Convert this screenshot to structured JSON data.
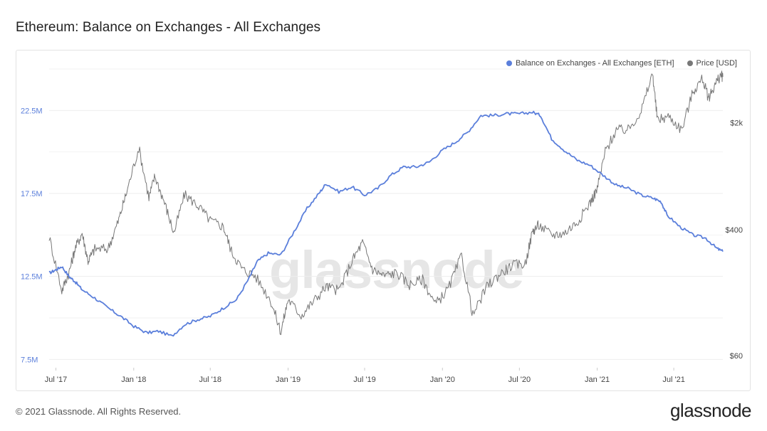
{
  "title": "Ethereum: Balance on Exchanges - All Exchanges",
  "watermark": "glassnode",
  "footer": {
    "copyright": "© 2021 Glassnode. All Rights Reserved.",
    "logo": "glassnode"
  },
  "legend": [
    {
      "label": "Balance on Exchanges - All Exchanges [ETH]",
      "color": "#5b7fdb"
    },
    {
      "label": "Price [USD]",
      "color": "#777777"
    }
  ],
  "chart_data": {
    "type": "line",
    "title": "Ethereum: Balance on Exchanges - All Exchanges",
    "x_ticks": [
      "Jul '17",
      "Jan '18",
      "Jul '18",
      "Jan '19",
      "Jul '19",
      "Jan '20",
      "Jul '20",
      "Jan '21",
      "Jul '21"
    ],
    "x_range": [
      "2017-06-15",
      "2021-10-25"
    ],
    "y_left": {
      "ticks": [
        "7.5M",
        "12.5M",
        "17.5M",
        "22.5M"
      ],
      "tick_values": [
        7.5,
        12.5,
        17.5,
        22.5
      ],
      "range": [
        7.0,
        25.0
      ],
      "unit": "M ETH",
      "color": "#5b7fdb"
    },
    "y_right": {
      "ticks": [
        "$60",
        "$400",
        "$2k"
      ],
      "tick_values": [
        60,
        400,
        2000
      ],
      "scale": "log",
      "range": [
        50,
        4500
      ],
      "color": "#444444"
    },
    "grid": true,
    "legend_position": "top-right",
    "series": [
      {
        "name": "Balance on Exchanges - All Exchanges [ETH]",
        "axis": "left",
        "color": "#5b7fdb",
        "points": [
          [
            "2017-06-15",
            12.7
          ],
          [
            "2017-07-01",
            12.9
          ],
          [
            "2017-07-15",
            13.1
          ],
          [
            "2017-08-01",
            12.5
          ],
          [
            "2017-08-15",
            12.2
          ],
          [
            "2017-09-01",
            11.7
          ],
          [
            "2017-10-01",
            11.2
          ],
          [
            "2017-11-01",
            10.6
          ],
          [
            "2017-12-01",
            10.1
          ],
          [
            "2018-01-01",
            9.5
          ],
          [
            "2018-02-01",
            9.1
          ],
          [
            "2018-03-01",
            9.2
          ],
          [
            "2018-04-01",
            8.9
          ],
          [
            "2018-05-01",
            9.6
          ],
          [
            "2018-06-01",
            9.9
          ],
          [
            "2018-07-01",
            10.1
          ],
          [
            "2018-08-01",
            10.6
          ],
          [
            "2018-09-01",
            11.1
          ],
          [
            "2018-10-01",
            12.4
          ],
          [
            "2018-10-20",
            13.4
          ],
          [
            "2018-11-15",
            13.9
          ],
          [
            "2018-12-15",
            13.8
          ],
          [
            "2019-01-15",
            15.2
          ],
          [
            "2019-02-15",
            16.6
          ],
          [
            "2019-03-15",
            17.5
          ],
          [
            "2019-04-01",
            18.1
          ],
          [
            "2019-05-01",
            17.6
          ],
          [
            "2019-06-01",
            17.9
          ],
          [
            "2019-07-01",
            17.4
          ],
          [
            "2019-08-01",
            17.8
          ],
          [
            "2019-09-01",
            18.6
          ],
          [
            "2019-10-01",
            19.1
          ],
          [
            "2019-11-01",
            19.1
          ],
          [
            "2019-12-01",
            19.4
          ],
          [
            "2020-01-01",
            20.1
          ],
          [
            "2020-02-01",
            20.6
          ],
          [
            "2020-03-01",
            21.2
          ],
          [
            "2020-04-01",
            22.2
          ],
          [
            "2020-05-01",
            22.2
          ],
          [
            "2020-06-01",
            22.3
          ],
          [
            "2020-07-01",
            22.3
          ],
          [
            "2020-08-01",
            22.4
          ],
          [
            "2020-08-20",
            22.2
          ],
          [
            "2020-09-15",
            20.8
          ],
          [
            "2020-10-15",
            20.1
          ],
          [
            "2020-11-15",
            19.5
          ],
          [
            "2020-12-15",
            19.2
          ],
          [
            "2021-01-15",
            18.6
          ],
          [
            "2021-02-15",
            18.0
          ],
          [
            "2021-03-15",
            17.8
          ],
          [
            "2021-04-15",
            17.4
          ],
          [
            "2021-05-15",
            17.2
          ],
          [
            "2021-06-01",
            17.0
          ],
          [
            "2021-06-15",
            16.2
          ],
          [
            "2021-07-15",
            15.5
          ],
          [
            "2021-08-15",
            15.0
          ],
          [
            "2021-09-15",
            14.8
          ],
          [
            "2021-10-10",
            14.2
          ],
          [
            "2021-10-25",
            14.0
          ]
        ]
      },
      {
        "name": "Price [USD]",
        "axis": "right",
        "color": "#777777",
        "points": [
          [
            "2017-06-15",
            360
          ],
          [
            "2017-07-15",
            160
          ],
          [
            "2017-08-01",
            210
          ],
          [
            "2017-08-15",
            300
          ],
          [
            "2017-09-01",
            380
          ],
          [
            "2017-09-15",
            250
          ],
          [
            "2017-10-01",
            300
          ],
          [
            "2017-11-01",
            300
          ],
          [
            "2017-11-25",
            450
          ],
          [
            "2017-12-15",
            700
          ],
          [
            "2018-01-13",
            1380
          ],
          [
            "2018-02-06",
            650
          ],
          [
            "2018-02-20",
            900
          ],
          [
            "2018-03-15",
            600
          ],
          [
            "2018-04-06",
            380
          ],
          [
            "2018-05-01",
            680
          ],
          [
            "2018-06-01",
            580
          ],
          [
            "2018-07-01",
            460
          ],
          [
            "2018-08-01",
            420
          ],
          [
            "2018-08-20",
            290
          ],
          [
            "2018-09-15",
            220
          ],
          [
            "2018-10-15",
            200
          ],
          [
            "2018-11-20",
            140
          ],
          [
            "2018-12-15",
            86
          ],
          [
            "2019-01-01",
            140
          ],
          [
            "2019-02-01",
            110
          ],
          [
            "2019-03-01",
            135
          ],
          [
            "2019-04-01",
            170
          ],
          [
            "2019-05-01",
            160
          ],
          [
            "2019-06-01",
            250
          ],
          [
            "2019-06-26",
            330
          ],
          [
            "2019-07-20",
            220
          ],
          [
            "2019-08-15",
            200
          ],
          [
            "2019-09-15",
            210
          ],
          [
            "2019-10-15",
            175
          ],
          [
            "2019-11-15",
            190
          ],
          [
            "2019-12-15",
            130
          ],
          [
            "2020-01-15",
            165
          ],
          [
            "2020-02-15",
            270
          ],
          [
            "2020-03-13",
            110
          ],
          [
            "2020-04-15",
            170
          ],
          [
            "2020-05-15",
            205
          ],
          [
            "2020-06-15",
            235
          ],
          [
            "2020-07-15",
            240
          ],
          [
            "2020-08-01",
            390
          ],
          [
            "2020-08-15",
            430
          ],
          [
            "2020-09-15",
            370
          ],
          [
            "2020-10-15",
            380
          ],
          [
            "2020-11-15",
            450
          ],
          [
            "2020-12-15",
            600
          ],
          [
            "2021-01-01",
            740
          ],
          [
            "2021-01-20",
            1300
          ],
          [
            "2021-02-15",
            1800
          ],
          [
            "2021-03-15",
            1800
          ],
          [
            "2021-04-15",
            2400
          ],
          [
            "2021-05-12",
            4200
          ],
          [
            "2021-05-23",
            2100
          ],
          [
            "2021-06-20",
            2200
          ],
          [
            "2021-07-20",
            1800
          ],
          [
            "2021-08-15",
            3200
          ],
          [
            "2021-09-07",
            3900
          ],
          [
            "2021-09-21",
            2900
          ],
          [
            "2021-10-05",
            3500
          ],
          [
            "2021-10-20",
            4100
          ],
          [
            "2021-10-25",
            4000
          ]
        ]
      }
    ]
  }
}
